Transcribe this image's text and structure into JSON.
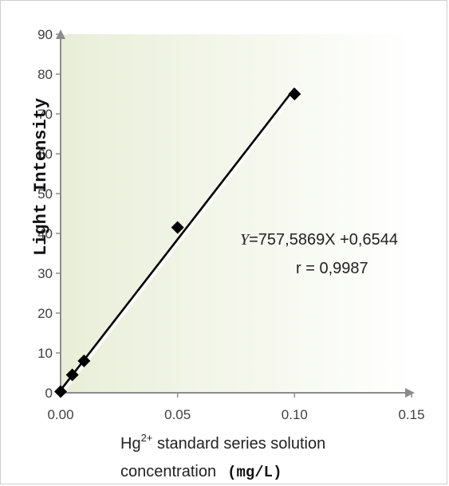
{
  "chart_data": {
    "type": "scatter",
    "xlabel": "Hg",
    "xlabel_sup": "2+",
    "xlabel_rest": " standard series solution",
    "xlabel_line2": "concentration",
    "xlabel_unit": "(mg/L)",
    "ylabel": "Light Intensity",
    "xlim": [
      0,
      0.15
    ],
    "ylim": [
      0,
      90
    ],
    "x_ticks": [
      "0.00",
      "0.05",
      "0.10",
      "0.15"
    ],
    "y_ticks": [
      "0",
      "10",
      "20",
      "30",
      "40",
      "50",
      "60",
      "70",
      "80",
      "90"
    ],
    "points": [
      {
        "x": 0.0,
        "y": 0.3
      },
      {
        "x": 0.005,
        "y": 4.5
      },
      {
        "x": 0.01,
        "y": 8.0
      },
      {
        "x": 0.05,
        "y": 41.5
      },
      {
        "x": 0.1,
        "y": 75.0
      }
    ],
    "fit": {
      "slope": 757.5869,
      "intercept": 0.6544,
      "x_from": 0.0,
      "x_to": 0.1
    },
    "equation_var": "Y",
    "equation_rest": "=757,5869X +0,6544",
    "r_text": "r = 0,9987",
    "gridlines": "horizontal",
    "marker_color": "#000000",
    "line_color": "#000000"
  }
}
